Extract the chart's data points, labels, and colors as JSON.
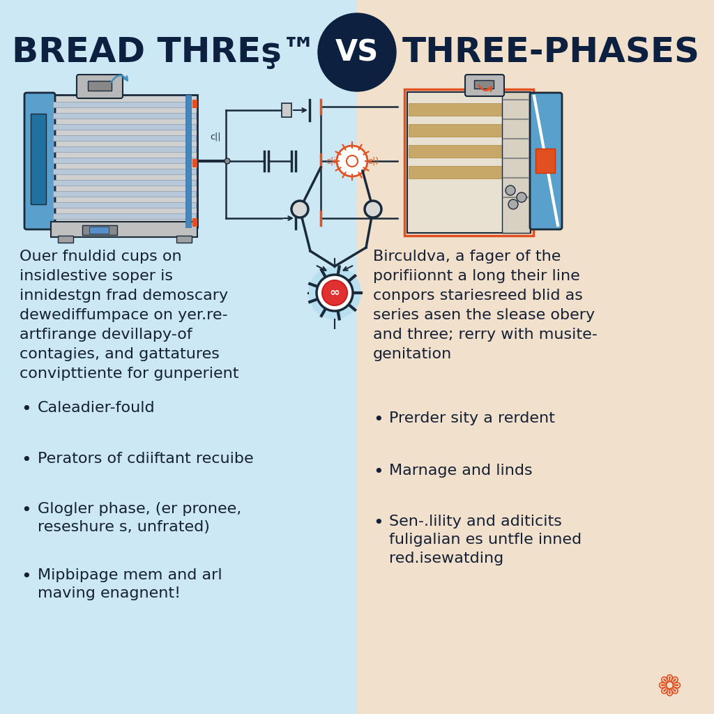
{
  "left_bg": "#cce8f4",
  "right_bg": "#f0e0cc",
  "vs_circle_color": "#0d2040",
  "title_color": "#0d2040",
  "text_color": "#152035",
  "left_title": "BREAD THREş™",
  "right_title": "THREE-PHASES",
  "vs_text": "VS",
  "left_paragraph": "Ouer fnuldid cups on\ninsidlestive soper is\ninnidestgn frad demoscary\ndewediffumpace on yer.re-\nartfirange devillapy-of\ncontagies, and gattatures\nconvipttiente for gunperient",
  "right_paragraph": "Birculdva, a fager of the\nporifiionnt a long their line\nconpors stariesreed blid as\nseries asen the slease obery\nand three; rerry with musite-\ngenitation",
  "left_bullets": [
    "Caleadier-fould",
    "Perators of cdiiftant recuibe",
    "Glogler phase, (er pronee,\nreseshure s, unfrated)",
    "Mipbipage mem and arl\nmaving enagnent!"
  ],
  "right_bullets": [
    "Prerder sity a rerdent",
    "Marnage and linds",
    "Sen-.lility and aditicits\nfuligalian es untfle inned\nred.isewatding"
  ],
  "accent_orange": "#e05020",
  "accent_blue": "#4090c0",
  "dark": "#1a2a3a"
}
